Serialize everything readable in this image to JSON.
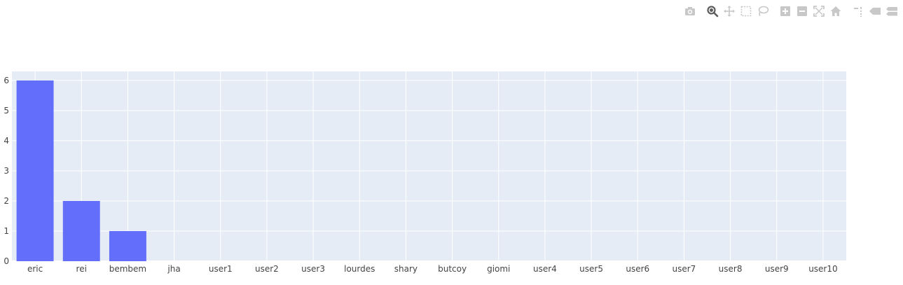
{
  "modebar": {
    "groups": [
      [
        "camera-icon"
      ],
      [
        "zoom-icon",
        "pan-icon",
        "box-select-icon",
        "lasso-select-icon"
      ],
      [
        "zoom-in-icon",
        "zoom-out-icon",
        "autoscale-icon",
        "reset-axes-icon"
      ],
      [
        "spike-lines-icon",
        "hover-closest-icon",
        "hover-compare-icon"
      ]
    ],
    "active": "zoom-icon",
    "color": "#c8c8c8",
    "active_color": "#5c5c5c"
  },
  "chart_data": {
    "type": "bar",
    "title": "",
    "xlabel": "",
    "ylabel": "",
    "categories": [
      "eric",
      "rei",
      "bembem",
      "jha",
      "user1",
      "user2",
      "user3",
      "lourdes",
      "shary",
      "butcoy",
      "giomi",
      "user4",
      "user5",
      "user6",
      "user7",
      "user8",
      "user9",
      "user10"
    ],
    "values": [
      6,
      2,
      1,
      0,
      0,
      0,
      0,
      0,
      0,
      0,
      0,
      0,
      0,
      0,
      0,
      0,
      0,
      0
    ],
    "ylim": [
      0,
      6.3
    ],
    "yticks": [
      0,
      1,
      2,
      3,
      4,
      5,
      6
    ],
    "grid": true,
    "legend": "none",
    "colors": {
      "bar": "#636efa",
      "plot_bg": "#e5ecf6",
      "grid": "#ffffff",
      "text": "#444444"
    }
  }
}
